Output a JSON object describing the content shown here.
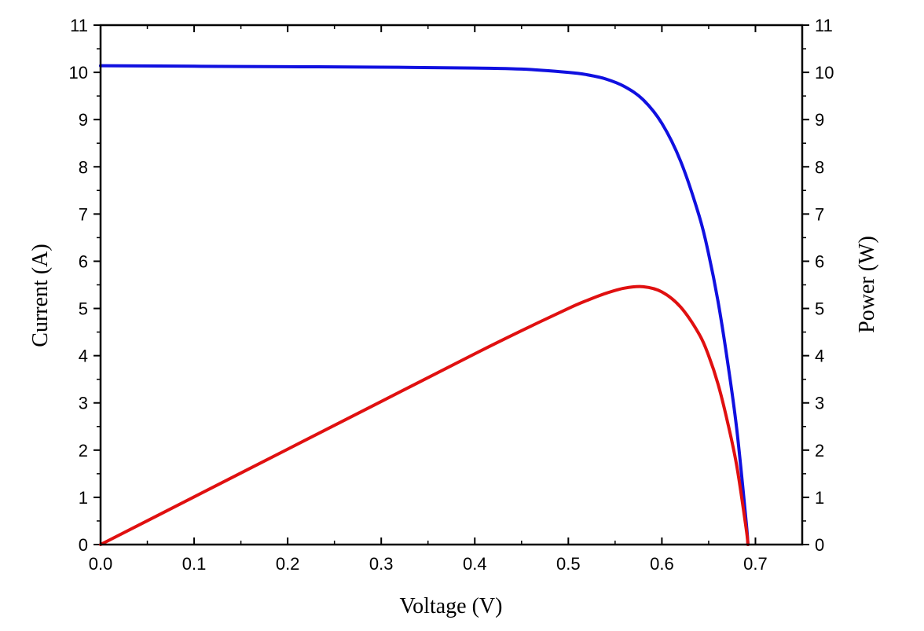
{
  "chart_data": {
    "type": "line",
    "xlabel": "Voltage (V)",
    "ylabel": "Current (A)",
    "ylabel_right": "Power (W)",
    "xlim": [
      0,
      0.75
    ],
    "ylim": [
      0,
      11
    ],
    "ylim_right": [
      0,
      11
    ],
    "x_ticks": [
      "0.0",
      "0.1",
      "0.2",
      "0.3",
      "0.4",
      "0.5",
      "0.6",
      "0.7"
    ],
    "y_ticks": [
      "0",
      "1",
      "2",
      "3",
      "4",
      "5",
      "6",
      "7",
      "8",
      "9",
      "10",
      "11"
    ],
    "y_ticks_right": [
      "0",
      "1",
      "2",
      "3",
      "4",
      "5",
      "6",
      "7",
      "8",
      "9",
      "10",
      "11"
    ],
    "grid": false,
    "series": [
      {
        "axis": "left",
        "color": "#1010e0",
        "x": [
          0,
          0.1,
          0.2,
          0.3,
          0.4,
          0.45,
          0.5,
          0.52,
          0.54,
          0.56,
          0.58,
          0.6,
          0.62,
          0.64,
          0.65,
          0.66,
          0.67,
          0.68,
          0.69,
          0.692
        ],
        "y": [
          10.14,
          10.13,
          10.12,
          10.11,
          10.09,
          10.07,
          10.0,
          9.95,
          9.86,
          9.7,
          9.42,
          8.92,
          8.12,
          6.95,
          6.15,
          5.15,
          3.9,
          2.45,
          0.5,
          0
        ]
      },
      {
        "axis": "right",
        "color": "#e01010",
        "x": [
          0,
          0.1,
          0.2,
          0.3,
          0.4,
          0.45,
          0.5,
          0.52,
          0.54,
          0.56,
          0.58,
          0.6,
          0.62,
          0.64,
          0.65,
          0.66,
          0.67,
          0.68,
          0.69,
          0.692
        ],
        "y": [
          0,
          1.01,
          2.02,
          3.03,
          4.04,
          4.53,
          5.0,
          5.17,
          5.32,
          5.43,
          5.46,
          5.35,
          5.03,
          4.45,
          4.0,
          3.4,
          2.61,
          1.67,
          0.35,
          0
        ]
      }
    ]
  }
}
